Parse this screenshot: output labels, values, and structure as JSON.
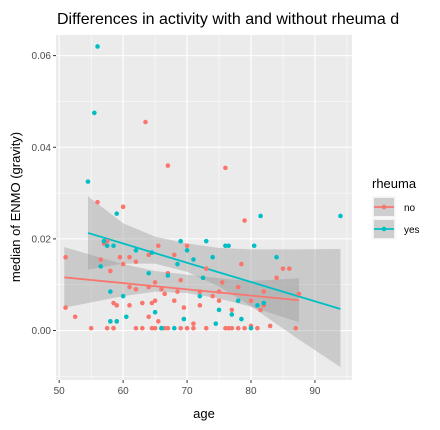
{
  "chart_data": {
    "type": "scatter",
    "title": "Differences in activity with and without rheuma d",
    "xlabel": "age",
    "ylabel": "median of ENMO (gravity)",
    "xlim": [
      49.5,
      95.8
    ],
    "ylim": [
      -0.0108,
      0.0645
    ],
    "x_ticks": [
      50,
      60,
      70,
      80,
      90
    ],
    "y_ticks": [
      0.0,
      0.02,
      0.04,
      0.06
    ],
    "y_tick_labels": [
      "0.00",
      "0.02",
      "0.04",
      "0.06"
    ],
    "grid": true,
    "background_color": "#ebebeb",
    "grid_color": "#ffffff",
    "legend": {
      "title": "rheuma",
      "position": "right"
    },
    "series": [
      {
        "name": "no",
        "color": "#f8766d",
        "points": [
          [
            51,
            0.016
          ],
          [
            51,
            0.005
          ],
          [
            52.5,
            0.003
          ],
          [
            55,
            0.0005
          ],
          [
            56,
            0.028
          ],
          [
            56.5,
            0.0155
          ],
          [
            57,
            0.019
          ],
          [
            57.5,
            0.0195
          ],
          [
            57.5,
            0.0005
          ],
          [
            58,
            0.002
          ],
          [
            58,
            0.013
          ],
          [
            58.5,
            0.0005
          ],
          [
            58.5,
            0.006
          ],
          [
            58.5,
            0.0005
          ],
          [
            59,
            0.002
          ],
          [
            59,
            0.0055
          ],
          [
            59.5,
            0.016
          ],
          [
            60,
            0.027
          ],
          [
            60,
            0.0145
          ],
          [
            61,
            0.016
          ],
          [
            61,
            0.0095
          ],
          [
            61,
            0.0055
          ],
          [
            62,
            0.0005
          ],
          [
            62,
            0.009
          ],
          [
            62,
            0.015
          ],
          [
            63,
            0.006
          ],
          [
            63,
            0.0005
          ],
          [
            63.5,
            0.0455
          ],
          [
            64,
            0.0165
          ],
          [
            64,
            0.0095
          ],
          [
            64,
            0.003
          ],
          [
            64.5,
            0.006
          ],
          [
            64.5,
            0.0005
          ],
          [
            65,
            0.0005
          ],
          [
            65,
            0.0065
          ],
          [
            65,
            0.0105
          ],
          [
            65.5,
            0.0185
          ],
          [
            65.5,
            0.002
          ],
          [
            66,
            0.0005
          ],
          [
            66,
            0.009
          ],
          [
            66.5,
            0.008
          ],
          [
            66.5,
            0.0005
          ],
          [
            67,
            0.036
          ],
          [
            67,
            0.0125
          ],
          [
            67,
            0.0005
          ],
          [
            68,
            0.0165
          ],
          [
            68,
            0.0065
          ],
          [
            68.5,
            0.0085
          ],
          [
            69,
            0.011
          ],
          [
            69,
            0.0005
          ],
          [
            69.5,
            0.005
          ],
          [
            70,
            0.0185
          ],
          [
            70,
            0.0005
          ],
          [
            71,
            0.0015
          ],
          [
            71,
            0.0005
          ],
          [
            72,
            0.0085
          ],
          [
            72,
            0.0055
          ],
          [
            73,
            0.0005
          ],
          [
            73,
            0.0135
          ],
          [
            74,
            0.0075
          ],
          [
            75,
            0.0065
          ],
          [
            75,
            0.0085
          ],
          [
            75.5,
            0.0105
          ],
          [
            76,
            0.0355
          ],
          [
            76,
            0.0005
          ],
          [
            76.5,
            0.0005
          ],
          [
            77,
            0.0005
          ],
          [
            77,
            0.0045
          ],
          [
            78,
            0.0005
          ],
          [
            78,
            0.0095
          ],
          [
            78.5,
            0.0145
          ],
          [
            79,
            0.024
          ],
          [
            79,
            0.0005
          ],
          [
            80,
            0.0065
          ],
          [
            80,
            0.001
          ],
          [
            81,
            0.0005
          ],
          [
            81.5,
            0.0045
          ],
          [
            82,
            0.0055
          ],
          [
            82,
            0.0085
          ],
          [
            83,
            0.001
          ],
          [
            84,
            0.0115
          ],
          [
            85,
            0.0135
          ],
          [
            86,
            0.0135
          ],
          [
            87,
            0.0005
          ],
          [
            87.5,
            0.008
          ]
        ],
        "fit_line": [
          [
            50.8,
            0.0116
          ],
          [
            87.5,
            0.0066
          ]
        ],
        "ci_band_lower": [
          [
            50.8,
            0.005
          ],
          [
            60,
            0.0075
          ],
          [
            65,
            0.0085
          ],
          [
            70,
            0.0082
          ],
          [
            75,
            0.007
          ],
          [
            80,
            0.0052
          ],
          [
            87.5,
            0.0018
          ]
        ],
        "ci_band_upper": [
          [
            50.8,
            0.0182
          ],
          [
            60,
            0.0145
          ],
          [
            65,
            0.013
          ],
          [
            70,
            0.0122
          ],
          [
            75,
            0.0114
          ],
          [
            80,
            0.0108
          ],
          [
            87.5,
            0.0114
          ]
        ]
      },
      {
        "name": "yes",
        "color": "#00bfc4",
        "points": [
          [
            54.5,
            0.0325
          ],
          [
            55.5,
            0.0475
          ],
          [
            56,
            0.062
          ],
          [
            56.5,
            0.014
          ],
          [
            57,
            0.0195
          ],
          [
            57.5,
            0.0185
          ],
          [
            58,
            0.002
          ],
          [
            58,
            0.0085
          ],
          [
            58.5,
            0.0185
          ],
          [
            59,
            0.0255
          ],
          [
            59,
            0.002
          ],
          [
            60,
            0.0075
          ],
          [
            60.5,
            0.003
          ],
          [
            62,
            0.0175
          ],
          [
            64,
            0.0125
          ],
          [
            64.5,
            0.017
          ],
          [
            65,
            0.004
          ],
          [
            66,
            0.0005
          ],
          [
            66,
            0.0005
          ],
          [
            67,
            0.012
          ],
          [
            68,
            0.0005
          ],
          [
            68.5,
            0.0145
          ],
          [
            69,
            0.0195
          ],
          [
            69.5,
            0.0025
          ],
          [
            70,
            0.0175
          ],
          [
            71,
            0.0155
          ],
          [
            72,
            0.0075
          ],
          [
            72.5,
            0.0115
          ],
          [
            73,
            0.0195
          ],
          [
            74,
            0.016
          ],
          [
            74.5,
            0.0015
          ],
          [
            75,
            0.0045
          ],
          [
            76,
            0.0185
          ],
          [
            76.5,
            0.0185
          ],
          [
            77,
            0.0035
          ],
          [
            78,
            0.0065
          ],
          [
            78.5,
            0.0025
          ],
          [
            80,
            0.0005
          ],
          [
            80.5,
            0.0185
          ],
          [
            81,
            0.0055
          ],
          [
            81.5,
            0.025
          ],
          [
            82,
            0.006
          ],
          [
            84,
            0.016
          ],
          [
            94,
            0.025
          ]
        ],
        "fit_line": [
          [
            54.5,
            0.0213
          ],
          [
            94,
            0.0047
          ]
        ],
        "ci_band_lower": [
          [
            54.5,
            0.0133
          ],
          [
            60,
            0.0146
          ],
          [
            65,
            0.0146
          ],
          [
            70,
            0.0128
          ],
          [
            75,
            0.0096
          ],
          [
            80,
            0.0053
          ],
          [
            87,
            -0.0015
          ],
          [
            94,
            -0.008
          ]
        ],
        "ci_band_upper": [
          [
            54.5,
            0.0293
          ],
          [
            60,
            0.0234
          ],
          [
            65,
            0.0205
          ],
          [
            70,
            0.019
          ],
          [
            75,
            0.018
          ],
          [
            80,
            0.0177
          ],
          [
            87,
            0.0177
          ],
          [
            94,
            0.0178
          ]
        ]
      }
    ]
  }
}
